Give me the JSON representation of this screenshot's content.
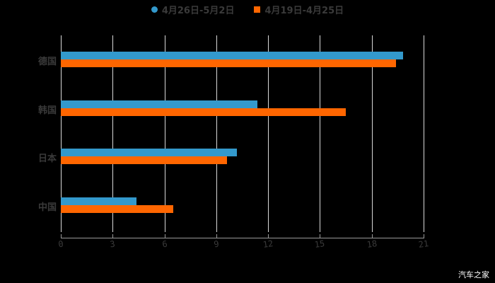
{
  "chart_data": {
    "type": "bar",
    "orientation": "horizontal",
    "title": "",
    "xlabel": "",
    "ylabel": "",
    "categories": [
      "德国",
      "韩国",
      "日本",
      "中国"
    ],
    "series": [
      {
        "name": "4月26日-5月2日",
        "color": "#3399cc",
        "values": [
          19.8,
          11.4,
          10.2,
          4.4
        ]
      },
      {
        "name": "4月19日-4月25日",
        "color": "#ff6600",
        "values": [
          19.4,
          16.5,
          9.6,
          6.5
        ]
      }
    ],
    "xlim": [
      0,
      21
    ],
    "xticks": [
      "0",
      "3",
      "6",
      "9",
      "12",
      "15",
      "18",
      "21"
    ],
    "grid": true,
    "legend_position": "top"
  },
  "legend": {
    "series_a": "4月26日-5月2日",
    "series_b": "4月19日-4月25日"
  },
  "watermark": "汽车之家"
}
